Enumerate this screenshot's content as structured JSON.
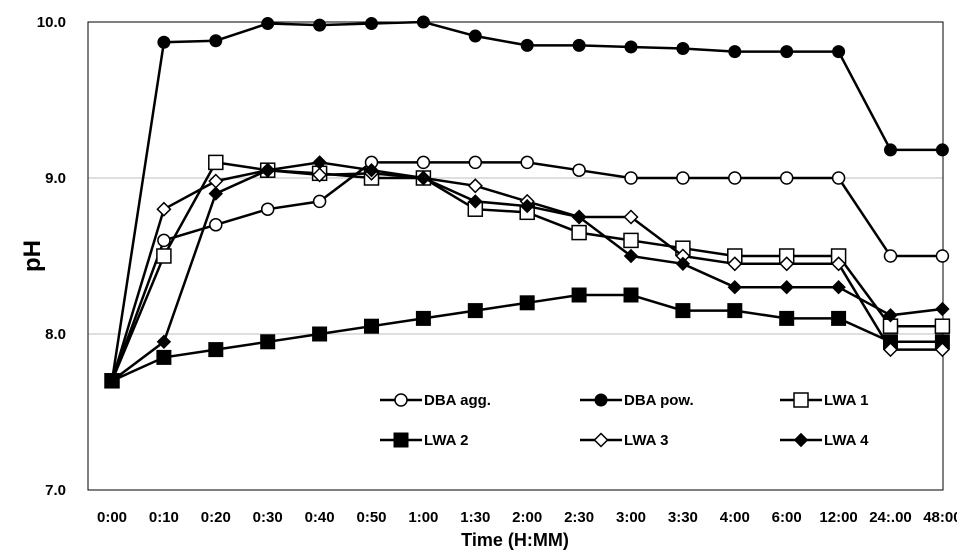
{
  "chart_data": {
    "type": "line",
    "title": "",
    "xlabel": "Time (H:MM)",
    "ylabel": "pH",
    "categories": [
      "0:00",
      "0:10",
      "0:20",
      "0:30",
      "0:40",
      "0:50",
      "1:00",
      "1:30",
      "2:00",
      "2:30",
      "3:00",
      "3:30",
      "4:00",
      "6:00",
      "12:00",
      "24:.00",
      "48:00"
    ],
    "ylim": [
      7.0,
      10.0
    ],
    "yticks": [
      "7.0",
      "8.0",
      "9.0",
      "10.0"
    ],
    "grid": "horizontal",
    "legend_position": "inside-bottom-right",
    "series": [
      {
        "name": "DBA agg.",
        "marker": "circle",
        "fill": "#ffffff",
        "values": [
          7.7,
          8.6,
          8.7,
          8.8,
          8.85,
          9.1,
          9.1,
          9.1,
          9.1,
          9.05,
          9.0,
          9.0,
          9.0,
          9.0,
          9.0,
          8.5,
          8.5
        ]
      },
      {
        "name": "DBA pow.",
        "marker": "circle",
        "fill": "#000000",
        "values": [
          7.7,
          9.87,
          9.88,
          9.99,
          9.98,
          9.99,
          10.0,
          9.91,
          9.85,
          9.85,
          9.84,
          9.83,
          9.81,
          9.81,
          9.81,
          9.18,
          9.18
        ]
      },
      {
        "name": "LWA 1",
        "marker": "square",
        "fill": "#ffffff",
        "values": [
          7.7,
          8.5,
          9.1,
          9.05,
          9.03,
          9.0,
          9.0,
          8.8,
          8.78,
          8.65,
          8.6,
          8.55,
          8.5,
          8.5,
          8.5,
          8.05,
          8.05
        ]
      },
      {
        "name": "LWA 2",
        "marker": "square",
        "fill": "#000000",
        "values": [
          7.7,
          7.85,
          7.9,
          7.95,
          8.0,
          8.05,
          8.1,
          8.15,
          8.2,
          8.25,
          8.25,
          8.15,
          8.15,
          8.1,
          8.1,
          7.95,
          7.95
        ]
      },
      {
        "name": "LWA 3",
        "marker": "diamond",
        "fill": "#ffffff",
        "values": [
          7.7,
          8.8,
          8.98,
          9.05,
          9.02,
          9.03,
          9.0,
          8.95,
          8.85,
          8.75,
          8.75,
          8.5,
          8.45,
          8.45,
          8.45,
          7.9,
          7.9
        ]
      },
      {
        "name": "LWA 4",
        "marker": "diamond",
        "fill": "#000000",
        "values": [
          7.7,
          7.95,
          8.9,
          9.05,
          9.1,
          9.05,
          9.0,
          8.85,
          8.82,
          8.75,
          8.5,
          8.45,
          8.3,
          8.3,
          8.3,
          8.12,
          8.16
        ]
      }
    ]
  }
}
